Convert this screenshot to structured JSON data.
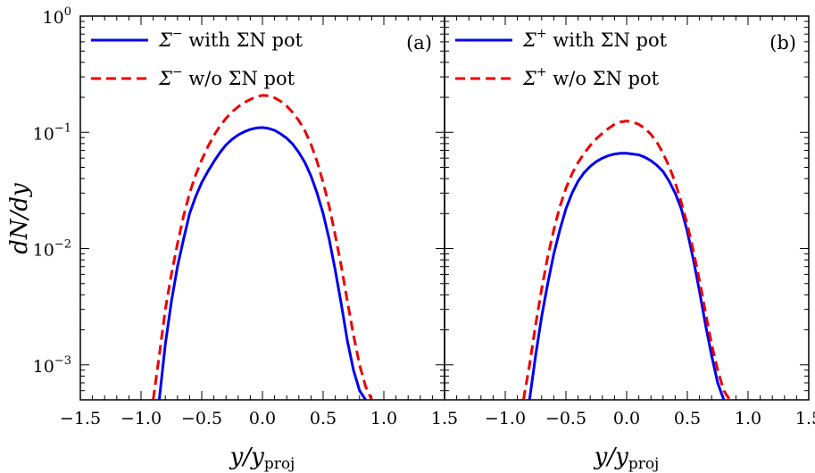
{
  "figure": {
    "y_axis_label": "dN/dy",
    "x_axis_label_main": "y/y",
    "x_axis_label_sub": "proj"
  },
  "chart_data": [
    {
      "type": "line",
      "panel_label": "(a)",
      "xlabel": "y/y_proj",
      "ylabel": "dN/dy",
      "yscale": "log",
      "xlim": [
        -1.5,
        1.5
      ],
      "ylim": [
        0.0005,
        1.0
      ],
      "x_ticks": [
        -1.5,
        -1.0,
        -0.5,
        0.0,
        0.5,
        1.0,
        1.5
      ],
      "x_tick_labels": [
        "−1.5",
        "−1.0",
        "−0.5",
        "0.0",
        "0.5",
        "1.0",
        "1.5"
      ],
      "legend_position": "top-left",
      "series": [
        {
          "name": "Σ⁻ with ΣN pot",
          "legend_sym": "Σ",
          "legend_sup": "−",
          "legend_text": " with ΣN pot",
          "style": "solid",
          "color": "#0000ee",
          "x": [
            -0.85,
            -0.8,
            -0.75,
            -0.7,
            -0.65,
            -0.6,
            -0.55,
            -0.5,
            -0.45,
            -0.4,
            -0.35,
            -0.3,
            -0.25,
            -0.2,
            -0.15,
            -0.1,
            -0.05,
            0.0,
            0.05,
            0.1,
            0.15,
            0.2,
            0.25,
            0.3,
            0.35,
            0.4,
            0.45,
            0.5,
            0.55,
            0.6,
            0.65,
            0.7,
            0.75,
            0.8,
            0.85
          ],
          "y": [
            0.0005,
            0.0015,
            0.0035,
            0.007,
            0.012,
            0.02,
            0.028,
            0.037,
            0.046,
            0.056,
            0.067,
            0.078,
            0.087,
            0.095,
            0.101,
            0.106,
            0.109,
            0.11,
            0.108,
            0.104,
            0.097,
            0.089,
            0.079,
            0.067,
            0.055,
            0.042,
            0.03,
            0.02,
            0.012,
            0.0065,
            0.0033,
            0.0016,
            0.0009,
            0.0006,
            0.0005
          ]
        },
        {
          "name": "Σ⁻ w/o ΣN pot",
          "legend_sym": "Σ",
          "legend_sup": "−",
          "legend_text": " w/o ΣN pot",
          "style": "dashed",
          "color": "#ee0000",
          "x": [
            -0.9,
            -0.85,
            -0.8,
            -0.75,
            -0.7,
            -0.65,
            -0.6,
            -0.55,
            -0.5,
            -0.45,
            -0.4,
            -0.35,
            -0.3,
            -0.25,
            -0.2,
            -0.15,
            -0.1,
            -0.05,
            0.0,
            0.05,
            0.1,
            0.15,
            0.2,
            0.25,
            0.3,
            0.35,
            0.4,
            0.45,
            0.5,
            0.55,
            0.6,
            0.65,
            0.7,
            0.75,
            0.8,
            0.85,
            0.9
          ],
          "y": [
            0.0005,
            0.0012,
            0.003,
            0.006,
            0.011,
            0.019,
            0.03,
            0.043,
            0.058,
            0.075,
            0.094,
            0.113,
            0.132,
            0.15,
            0.166,
            0.18,
            0.192,
            0.202,
            0.208,
            0.206,
            0.198,
            0.185,
            0.168,
            0.148,
            0.126,
            0.103,
            0.079,
            0.056,
            0.037,
            0.023,
            0.013,
            0.007,
            0.0035,
            0.0018,
            0.001,
            0.00065,
            0.0005
          ]
        }
      ]
    },
    {
      "type": "line",
      "panel_label": "(b)",
      "xlabel": "y/y_proj",
      "ylabel": "dN/dy",
      "yscale": "log",
      "xlim": [
        -1.5,
        1.5
      ],
      "ylim": [
        0.0005,
        1.0
      ],
      "x_ticks": [
        -1.0,
        -0.5,
        0.0,
        0.5,
        1.0,
        1.5
      ],
      "x_tick_labels": [
        "−1.0",
        "−0.5",
        "0.0",
        "0.5",
        "1.0",
        "1.5"
      ],
      "legend_position": "top-left",
      "series": [
        {
          "name": "Σ⁺ with ΣN pot",
          "legend_sym": "Σ",
          "legend_sup": "+",
          "legend_text": " with ΣN pot",
          "style": "solid",
          "color": "#0000ee",
          "x": [
            -0.8,
            -0.75,
            -0.7,
            -0.65,
            -0.6,
            -0.55,
            -0.5,
            -0.45,
            -0.4,
            -0.35,
            -0.3,
            -0.25,
            -0.2,
            -0.15,
            -0.1,
            -0.05,
            0.0,
            0.05,
            0.1,
            0.15,
            0.2,
            0.25,
            0.3,
            0.35,
            0.4,
            0.45,
            0.5,
            0.55,
            0.6,
            0.65,
            0.7,
            0.75,
            0.8
          ],
          "y": [
            0.0005,
            0.0012,
            0.0026,
            0.005,
            0.009,
            0.0145,
            0.022,
            0.03,
            0.038,
            0.045,
            0.051,
            0.056,
            0.06,
            0.063,
            0.065,
            0.066,
            0.066,
            0.065,
            0.064,
            0.061,
            0.057,
            0.052,
            0.046,
            0.038,
            0.03,
            0.022,
            0.014,
            0.008,
            0.0043,
            0.0022,
            0.0012,
            0.0007,
            0.0005
          ]
        },
        {
          "name": "Σ⁺ w/o ΣN pot",
          "legend_sym": "Σ",
          "legend_sup": "+",
          "legend_text": " w/o ΣN pot",
          "style": "dashed",
          "color": "#ee0000",
          "x": [
            -0.85,
            -0.8,
            -0.75,
            -0.7,
            -0.65,
            -0.6,
            -0.55,
            -0.5,
            -0.45,
            -0.4,
            -0.35,
            -0.3,
            -0.25,
            -0.2,
            -0.15,
            -0.1,
            -0.05,
            0.0,
            0.05,
            0.1,
            0.15,
            0.2,
            0.25,
            0.3,
            0.35,
            0.4,
            0.45,
            0.5,
            0.55,
            0.6,
            0.65,
            0.7,
            0.75,
            0.8,
            0.85
          ],
          "y": [
            0.0005,
            0.001,
            0.0022,
            0.0045,
            0.0085,
            0.0145,
            0.023,
            0.033,
            0.044,
            0.055,
            0.066,
            0.077,
            0.088,
            0.098,
            0.108,
            0.117,
            0.123,
            0.125,
            0.123,
            0.117,
            0.108,
            0.096,
            0.082,
            0.066,
            0.051,
            0.037,
            0.025,
            0.016,
            0.0095,
            0.0053,
            0.0028,
            0.0015,
            0.0009,
            0.0006,
            0.0005
          ]
        }
      ]
    }
  ]
}
